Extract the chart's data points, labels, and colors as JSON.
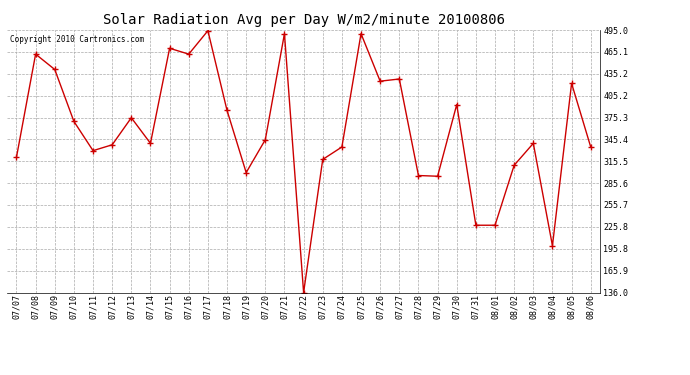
{
  "title": "Solar Radiation Avg per Day W/m2/minute 20100806",
  "copyright": "Copyright 2010 Cartronics.com",
  "dates": [
    "07/07",
    "07/08",
    "07/09",
    "07/10",
    "07/11",
    "07/12",
    "07/13",
    "07/14",
    "07/15",
    "07/16",
    "07/17",
    "07/18",
    "07/19",
    "07/20",
    "07/21",
    "07/22",
    "07/23",
    "07/24",
    "07/25",
    "07/26",
    "07/27",
    "07/28",
    "07/29",
    "07/30",
    "07/31",
    "08/01",
    "08/02",
    "08/03",
    "08/04",
    "08/05",
    "08/06"
  ],
  "values": [
    321.0,
    462.0,
    441.0,
    370.0,
    330.0,
    338.0,
    375.0,
    340.0,
    470.0,
    462.0,
    494.0,
    385.0,
    300.0,
    345.0,
    490.0,
    136.0,
    318.0,
    335.0,
    490.0,
    425.0,
    428.0,
    296.0,
    295.0,
    393.0,
    228.0,
    228.0,
    310.0,
    340.0,
    200.0,
    422.0,
    335.0
  ],
  "ymin": 136.0,
  "ymax": 495.0,
  "yticks": [
    495.0,
    465.1,
    435.2,
    405.2,
    375.3,
    345.4,
    315.5,
    285.6,
    255.7,
    225.8,
    195.8,
    165.9,
    136.0
  ],
  "line_color": "#cc0000",
  "marker": "+",
  "marker_size": 4,
  "marker_linewidth": 1.0,
  "line_width": 1.0,
  "background_color": "#ffffff",
  "grid_color": "#aaaaaa",
  "title_fontsize": 10,
  "tick_fontsize": 6,
  "copyright_fontsize": 5.5
}
